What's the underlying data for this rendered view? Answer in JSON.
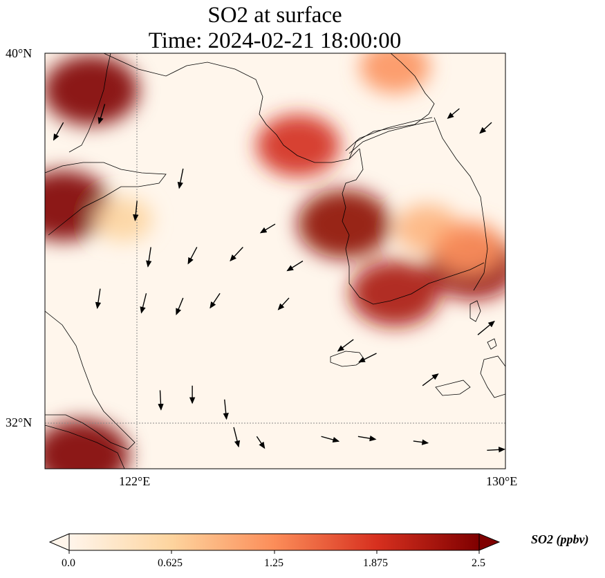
{
  "title": {
    "line1": "SO2 at surface",
    "line2": "Time: 2024-02-21 18:00:00"
  },
  "axes": {
    "y_ticks": [
      "40°N",
      "32°N"
    ],
    "x_ticks": [
      "122°E",
      "130°E"
    ]
  },
  "colorbar": {
    "label": "SO2 (ppbv)",
    "ticks": [
      "0.0",
      "0.625",
      "1.25",
      "1.875",
      "2.5"
    ],
    "colors": [
      "#fff5eb",
      "#fdd49e",
      "#fc8d59",
      "#d7301f",
      "#7f0000"
    ]
  },
  "chart_data": {
    "type": "heatmap",
    "title": "SO2 at surface\nTime: 2024-02-21 18:00:00",
    "xlim": [
      120,
      130
    ],
    "ylim": [
      31,
      40
    ],
    "x_ticks": [
      122,
      130
    ],
    "y_ticks": [
      32,
      40
    ],
    "colorbar_range": [
      0.0,
      2.5
    ],
    "colormap": "OrRd",
    "high_concentration_areas": [
      {
        "lon": 121.0,
        "lat": 39.2,
        "value": 2.5
      },
      {
        "lon": 120.4,
        "lat": 36.7,
        "value": 2.5
      },
      {
        "lon": 120.8,
        "lat": 31.3,
        "value": 2.5
      },
      {
        "lon": 126.5,
        "lat": 36.3,
        "value": 2.4
      },
      {
        "lon": 127.6,
        "lat": 34.8,
        "value": 2.2
      },
      {
        "lon": 129.3,
        "lat": 35.4,
        "value": 2.3
      },
      {
        "lon": 125.5,
        "lat": 38.0,
        "value": 1.9
      },
      {
        "lon": 128.3,
        "lat": 36.2,
        "value": 0.9
      },
      {
        "lon": 129.2,
        "lat": 35.8,
        "value": 1.2
      },
      {
        "lon": 121.7,
        "lat": 36.4,
        "value": 0.6
      },
      {
        "lon": 127.6,
        "lat": 39.7,
        "value": 1.2
      }
    ],
    "wind_vectors": [
      {
        "lon": 120.4,
        "lat": 38.5,
        "u": -1,
        "v": -1.8
      },
      {
        "lon": 121.3,
        "lat": 38.9,
        "u": -0.6,
        "v": -2
      },
      {
        "lon": 122.0,
        "lat": 36.8,
        "u": -0.2,
        "v": -2
      },
      {
        "lon": 123.0,
        "lat": 37.5,
        "u": -0.4,
        "v": -2
      },
      {
        "lon": 122.3,
        "lat": 35.8,
        "u": -0.3,
        "v": -2
      },
      {
        "lon": 123.3,
        "lat": 35.8,
        "u": -0.9,
        "v": -1.7
      },
      {
        "lon": 124.3,
        "lat": 35.8,
        "u": -1.3,
        "v": -1.4
      },
      {
        "lon": 125.0,
        "lat": 36.3,
        "u": -1.5,
        "v": -0.9
      },
      {
        "lon": 125.6,
        "lat": 35.5,
        "u": -1.6,
        "v": -1
      },
      {
        "lon": 121.2,
        "lat": 34.9,
        "u": -0.3,
        "v": -2
      },
      {
        "lon": 122.2,
        "lat": 34.8,
        "u": -0.5,
        "v": -2
      },
      {
        "lon": 123.0,
        "lat": 34.7,
        "u": -0.7,
        "v": -1.7
      },
      {
        "lon": 123.8,
        "lat": 34.8,
        "u": -1,
        "v": -1.5
      },
      {
        "lon": 125.3,
        "lat": 34.7,
        "u": -1.1,
        "v": -1.2
      },
      {
        "lon": 126.7,
        "lat": 33.8,
        "u": -1.6,
        "v": -1.2
      },
      {
        "lon": 127.2,
        "lat": 33.5,
        "u": -1.8,
        "v": -0.9
      },
      {
        "lon": 122.5,
        "lat": 32.7,
        "u": 0.1,
        "v": -2
      },
      {
        "lon": 123.2,
        "lat": 32.8,
        "u": 0,
        "v": -1.8
      },
      {
        "lon": 123.9,
        "lat": 32.5,
        "u": 0.2,
        "v": -2
      },
      {
        "lon": 124.1,
        "lat": 31.9,
        "u": 0.5,
        "v": -2
      },
      {
        "lon": 124.6,
        "lat": 31.7,
        "u": 0.8,
        "v": -1.2
      },
      {
        "lon": 126.0,
        "lat": 31.7,
        "u": 1.8,
        "v": -0.5
      },
      {
        "lon": 126.8,
        "lat": 31.7,
        "u": 1.8,
        "v": -0.3
      },
      {
        "lon": 128.0,
        "lat": 31.6,
        "u": 1.5,
        "v": -0.2
      },
      {
        "lon": 129.6,
        "lat": 31.4,
        "u": 1.8,
        "v": 0.1
      },
      {
        "lon": 128.2,
        "lat": 32.8,
        "u": 1.6,
        "v": 1.2
      },
      {
        "lon": 129.4,
        "lat": 33.9,
        "u": 1.7,
        "v": 1.4
      },
      {
        "lon": 129.0,
        "lat": 38.8,
        "u": -1.2,
        "v": -1
      },
      {
        "lon": 129.7,
        "lat": 38.5,
        "u": -1.2,
        "v": -1.1
      }
    ]
  }
}
